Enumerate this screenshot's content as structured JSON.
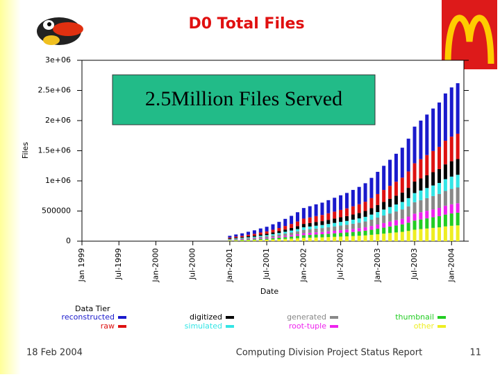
{
  "chart_data": {
    "type": "stacked_bar",
    "title": "D0 Total Files",
    "annotation": "2.5Million Files Served",
    "x_label": "Date",
    "y_label": "Files",
    "legend_title": "Data Tier",
    "footer_left": "18 Feb 2004",
    "footer_center": "Computing Division Project Status Report",
    "page_number": "11",
    "xlim": [
      "1999-01",
      "2004-03"
    ],
    "xticks": [
      {
        "value": "1999-01",
        "label": "Jan 1999"
      },
      {
        "value": "1999-07",
        "label": "Jul-1999"
      },
      {
        "value": "2000-01",
        "label": "Jan-2000"
      },
      {
        "value": "2000-07",
        "label": "Jul-2000"
      },
      {
        "value": "2001-01",
        "label": "Jan-2001"
      },
      {
        "value": "2001-07",
        "label": "Jul-2001"
      },
      {
        "value": "2002-01",
        "label": "Jan-2002"
      },
      {
        "value": "2002-07",
        "label": "Jul-2002"
      },
      {
        "value": "2003-01",
        "label": "Jan-2003"
      },
      {
        "value": "2003-07",
        "label": "Jul-2003"
      },
      {
        "value": "2004-01",
        "label": "Jan-2004"
      }
    ],
    "ylim": [
      0,
      3000000
    ],
    "yticks": [
      0,
      500000,
      {
        "value": 1000000,
        "label": "1e+06"
      },
      {
        "value": 1500000,
        "label": "1.5e+06"
      },
      {
        "value": 2000000,
        "label": "2e+06"
      },
      {
        "value": 2500000,
        "label": "2.5e+06"
      },
      {
        "value": 3000000,
        "label": "3e+06"
      }
    ],
    "x": [
      "2001-01",
      "2001-02",
      "2001-03",
      "2001-04",
      "2001-05",
      "2001-06",
      "2001-07",
      "2001-08",
      "2001-09",
      "2001-10",
      "2001-11",
      "2001-12",
      "2002-01",
      "2002-02",
      "2002-03",
      "2002-04",
      "2002-05",
      "2002-06",
      "2002-07",
      "2002-08",
      "2002-09",
      "2002-10",
      "2002-11",
      "2002-12",
      "2003-01",
      "2003-02",
      "2003-03",
      "2003-04",
      "2003-05",
      "2003-06",
      "2003-07",
      "2003-08",
      "2003-09",
      "2003-10",
      "2003-11",
      "2003-12",
      "2004-01",
      "2004-02"
    ],
    "series": [
      {
        "name": "reconstructed",
        "color": "#1a1acc",
        "values": [
          29000,
          35000,
          42000,
          50000,
          58000,
          67000,
          77000,
          90000,
          102000,
          118000,
          134000,
          154000,
          176000,
          186000,
          195000,
          205000,
          218000,
          230000,
          243000,
          256000,
          272000,
          288000,
          307000,
          336000,
          368000,
          400000,
          432000,
          464000,
          496000,
          544000,
          608000,
          640000,
          672000,
          704000,
          736000,
          784000,
          816000,
          838000
        ]
      },
      {
        "name": "raw",
        "color": "#dd1111",
        "values": [
          14000,
          18000,
          21000,
          25000,
          29000,
          34000,
          38000,
          45000,
          51000,
          59000,
          67000,
          77000,
          88000,
          93000,
          98000,
          102000,
          109000,
          115000,
          122000,
          128000,
          136000,
          144000,
          154000,
          168000,
          184000,
          200000,
          216000,
          232000,
          248000,
          272000,
          304000,
          320000,
          336000,
          352000,
          368000,
          392000,
          408000,
          419000
        ]
      },
      {
        "name": "digitized",
        "color": "#000000",
        "values": [
          9000,
          11000,
          13000,
          16000,
          18000,
          21000,
          24000,
          28000,
          32000,
          37000,
          42000,
          48000,
          55000,
          58000,
          61000,
          64000,
          68000,
          72000,
          76000,
          80000,
          85000,
          90000,
          96000,
          105000,
          115000,
          125000,
          135000,
          145000,
          155000,
          170000,
          190000,
          200000,
          210000,
          220000,
          230000,
          245000,
          255000,
          262000
        ]
      },
      {
        "name": "simulated",
        "color": "#33e5e5",
        "values": [
          7000,
          9000,
          10000,
          12000,
          14000,
          17000,
          19000,
          22000,
          26000,
          30000,
          34000,
          38000,
          44000,
          46000,
          49000,
          51000,
          54000,
          58000,
          61000,
          64000,
          68000,
          72000,
          77000,
          84000,
          92000,
          100000,
          108000,
          116000,
          124000,
          136000,
          152000,
          160000,
          168000,
          176000,
          184000,
          196000,
          204000,
          210000
        ]
      },
      {
        "name": "generated",
        "color": "#888888",
        "values": [
          9000,
          11000,
          13000,
          16000,
          18000,
          21000,
          24000,
          28000,
          32000,
          37000,
          42000,
          48000,
          55000,
          58000,
          61000,
          64000,
          68000,
          72000,
          76000,
          80000,
          85000,
          90000,
          96000,
          105000,
          115000,
          125000,
          135000,
          145000,
          155000,
          170000,
          190000,
          200000,
          210000,
          220000,
          230000,
          245000,
          255000,
          262000
        ]
      },
      {
        "name": "root-tuple",
        "color": "#ee22ee",
        "values": [
          5000,
          7000,
          8000,
          9000,
          11000,
          13000,
          14000,
          17000,
          19000,
          22000,
          25000,
          29000,
          33000,
          35000,
          37000,
          38000,
          41000,
          43000,
          46000,
          48000,
          51000,
          54000,
          58000,
          63000,
          69000,
          75000,
          81000,
          87000,
          93000,
          102000,
          114000,
          120000,
          126000,
          132000,
          138000,
          147000,
          153000,
          157000
        ]
      },
      {
        "name": "thumbnail",
        "color": "#22cc22",
        "values": [
          7000,
          9000,
          10000,
          12000,
          14000,
          17000,
          19000,
          22000,
          26000,
          30000,
          34000,
          38000,
          44000,
          46000,
          49000,
          51000,
          54000,
          58000,
          61000,
          64000,
          68000,
          72000,
          77000,
          84000,
          92000,
          100000,
          108000,
          116000,
          124000,
          136000,
          152000,
          160000,
          168000,
          176000,
          184000,
          196000,
          204000,
          210000
        ]
      },
      {
        "name": "other",
        "color": "#eeee22",
        "values": [
          9000,
          11000,
          13000,
          16000,
          18000,
          21000,
          24000,
          28000,
          32000,
          37000,
          42000,
          48000,
          55000,
          58000,
          61000,
          64000,
          68000,
          72000,
          76000,
          80000,
          85000,
          90000,
          96000,
          105000,
          115000,
          125000,
          135000,
          145000,
          155000,
          170000,
          190000,
          200000,
          210000,
          220000,
          230000,
          245000,
          255000,
          262000
        ]
      }
    ]
  }
}
